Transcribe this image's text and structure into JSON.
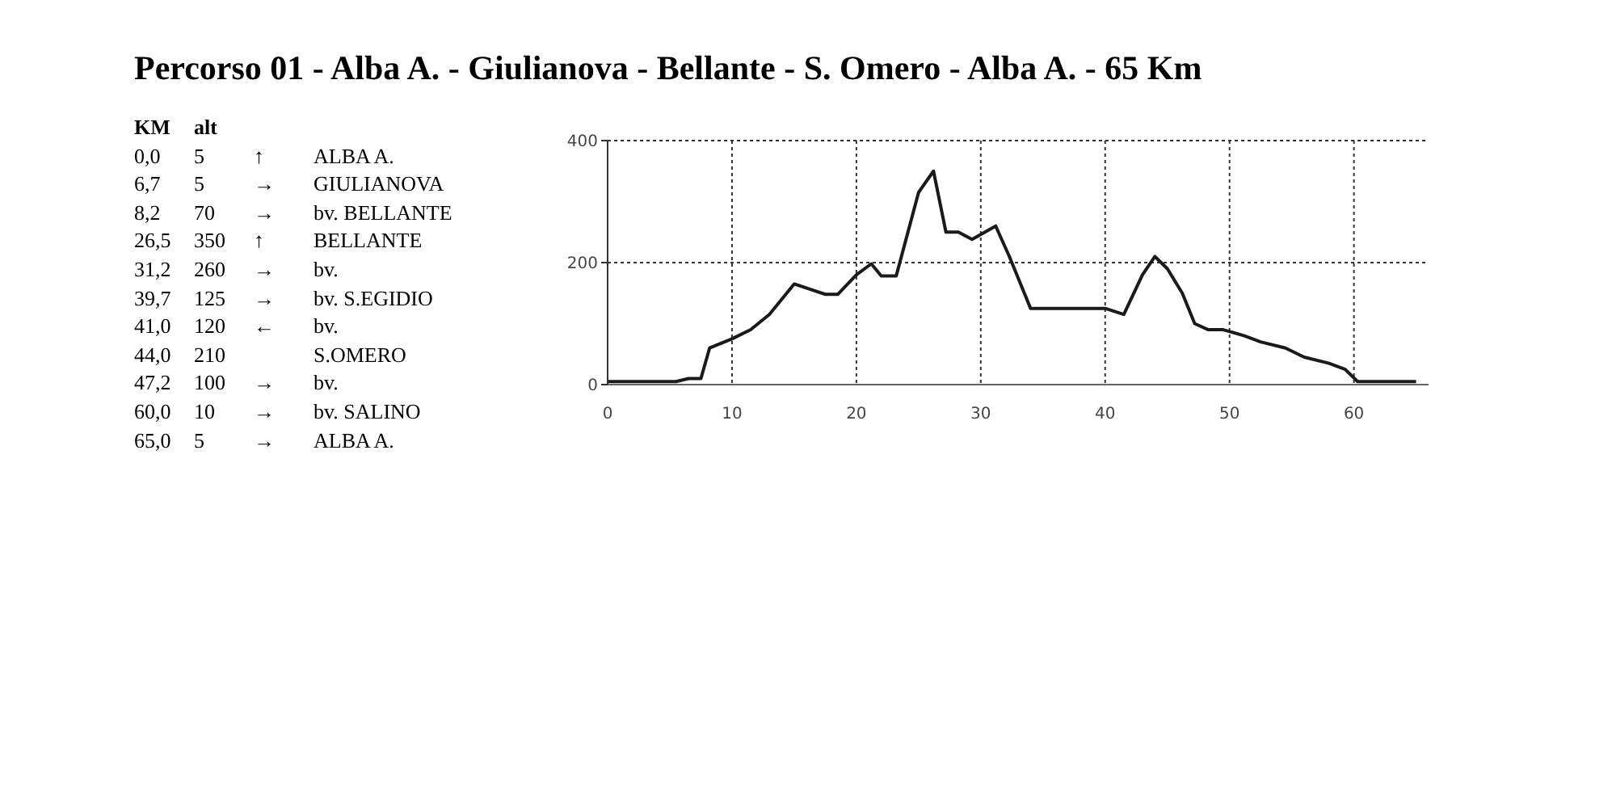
{
  "chart_data": {
    "type": "line",
    "title": "Percorso 01 - Alba A. - Giulianova - Bellante - S. Omero - Alba A. - 65 Km",
    "annotations": [
      "KM\talt",
      "0,0\t5\t↑\tALBA A.",
      "6,7\t5\t→\tGIULIANOVA",
      "8,2\t70\t→\tbv. BELLANTE",
      "26,5\t350\t↑\tBELLANTE",
      "31,2\t260\t→\tbv.",
      "39,7\t125\t→\tbv. S.EGIDIO",
      "41,0\t120\t←\tbv.",
      "44,0\t210\t\tS.OMERO",
      "47,2\t100\t→\tbv.",
      "60,0\t10\t→\tbv. SALINO",
      "65,0\t5\t→\tALBA A."
    ],
    "x": [
      0,
      5.5,
      6.5,
      7.5,
      8.2,
      10,
      11.5,
      13,
      15,
      17.5,
      18.5,
      20,
      21.2,
      22,
      23.2,
      25,
      26.2,
      27.2,
      28.2,
      29.3,
      31.2,
      32.3,
      34,
      37,
      40,
      41.5,
      43,
      44,
      45,
      46.2,
      47.2,
      48.3,
      49.5,
      51.2,
      52.5,
      54.5,
      56,
      58,
      59.3,
      60.3,
      65
    ],
    "series": [
      {
        "color": "#1a1a1a",
        "values": [
          5,
          5,
          10,
          10,
          60,
          75,
          90,
          115,
          165,
          148,
          148,
          180,
          198,
          178,
          178,
          315,
          350,
          250,
          250,
          238,
          260,
          210,
          125,
          125,
          125,
          115,
          180,
          210,
          190,
          150,
          100,
          90,
          90,
          80,
          70,
          60,
          45,
          35,
          25,
          5,
          5
        ]
      }
    ],
    "xlim": [
      0,
      66
    ],
    "xticks": [
      0,
      10,
      20,
      30,
      40,
      50,
      60
    ],
    "ylim": [
      0,
      400
    ],
    "yticks": [
      0,
      200,
      400
    ],
    "grid": true,
    "marker": "none",
    "line_style": "solid"
  }
}
